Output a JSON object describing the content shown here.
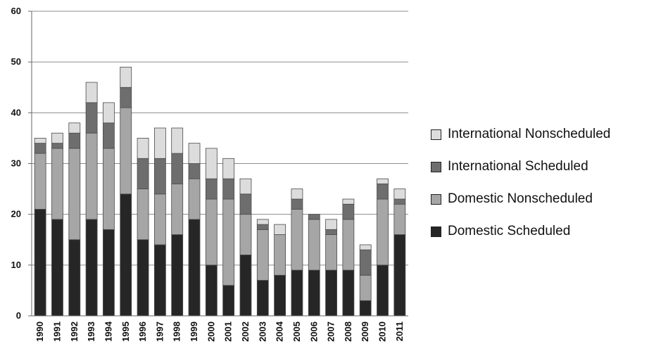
{
  "chart_data": {
    "type": "bar",
    "stacked": true,
    "title": "",
    "xlabel": "",
    "ylabel": "",
    "ylim": [
      0,
      60
    ],
    "yticks": [
      0,
      10,
      20,
      30,
      40,
      50,
      60
    ],
    "grid": true,
    "legend_position": "right",
    "categories": [
      "1990",
      "1991",
      "1992",
      "1993",
      "1994",
      "1995",
      "1996",
      "1997",
      "1998",
      "1999",
      "2000",
      "2001",
      "2002",
      "2003",
      "2004",
      "2005",
      "2006",
      "2007",
      "2008",
      "2009",
      "2010",
      "2011"
    ],
    "series": [
      {
        "name": "Domestic Scheduled",
        "color": "#262626",
        "values": [
          21,
          19,
          15,
          19,
          17,
          24,
          15,
          14,
          16,
          19,
          10,
          6,
          12,
          7,
          8,
          9,
          9,
          9,
          9,
          3,
          10,
          16
        ]
      },
      {
        "name": "Domestic Nonscheduled",
        "color": "#a6a6a6",
        "values": [
          11,
          14,
          18,
          17,
          16,
          17,
          10,
          10,
          10,
          8,
          13,
          17,
          8,
          10,
          8,
          12,
          10,
          7,
          10,
          5,
          13,
          6
        ]
      },
      {
        "name": "International Scheduled",
        "color": "#6e6e6e",
        "values": [
          2,
          1,
          3,
          6,
          5,
          4,
          6,
          7,
          6,
          3,
          4,
          4,
          4,
          1,
          0,
          2,
          1,
          1,
          3,
          5,
          3,
          1
        ]
      },
      {
        "name": "International Nonscheduled",
        "color": "#dcdcdc",
        "values": [
          1,
          2,
          2,
          4,
          4,
          4,
          4,
          6,
          5,
          4,
          6,
          4,
          3,
          1,
          2,
          2,
          0,
          2,
          1,
          1,
          1,
          2
        ]
      }
    ]
  }
}
